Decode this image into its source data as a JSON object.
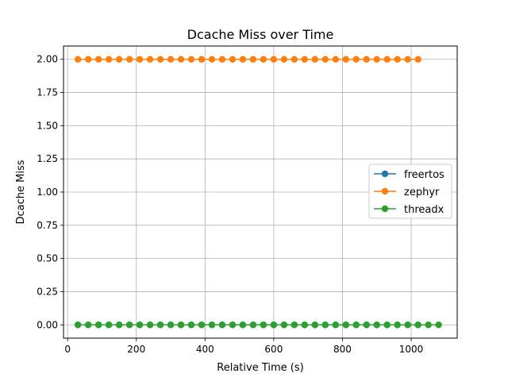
{
  "chart_data": {
    "type": "line",
    "title": "Dcache Miss over Time",
    "xlabel": "Relative Time (s)",
    "ylabel": "Dcache Miss",
    "xlim": [
      -12,
      1134
    ],
    "ylim": [
      -0.1,
      2.1
    ],
    "xticks": [
      0,
      200,
      400,
      600,
      800,
      1000
    ],
    "xtick_labels": [
      "0",
      "200",
      "400",
      "600",
      "800",
      "1000"
    ],
    "yticks": [
      0,
      0.25,
      0.5,
      0.75,
      1.0,
      1.25,
      1.5,
      1.75,
      2.0
    ],
    "ytick_labels": [
      "0.00",
      "0.25",
      "0.50",
      "0.75",
      "1.00",
      "1.25",
      "1.50",
      "1.75",
      "2.00"
    ],
    "grid": true,
    "legend_position": "center-right",
    "series": [
      {
        "name": "freertos",
        "color": "#1f77b4",
        "x": [
          30,
          60,
          90,
          120,
          150,
          180,
          210,
          240,
          270,
          300,
          330,
          360,
          390,
          420,
          450,
          480,
          510,
          540,
          570,
          600,
          630,
          660,
          690,
          720,
          750,
          780,
          810,
          840,
          870,
          900,
          930,
          960,
          990,
          1020
        ],
        "y": [
          0,
          0,
          0,
          0,
          0,
          0,
          0,
          0,
          0,
          0,
          0,
          0,
          0,
          0,
          0,
          0,
          0,
          0,
          0,
          0,
          0,
          0,
          0,
          0,
          0,
          0,
          0,
          0,
          0,
          0,
          0,
          0,
          0,
          0
        ]
      },
      {
        "name": "zephyr",
        "color": "#ff7f0e",
        "x": [
          30,
          60,
          90,
          120,
          150,
          180,
          210,
          240,
          270,
          300,
          330,
          360,
          390,
          420,
          450,
          480,
          510,
          540,
          570,
          600,
          630,
          660,
          690,
          720,
          750,
          780,
          810,
          840,
          870,
          900,
          930,
          960,
          990,
          1020
        ],
        "y": [
          2,
          2,
          2,
          2,
          2,
          2,
          2,
          2,
          2,
          2,
          2,
          2,
          2,
          2,
          2,
          2,
          2,
          2,
          2,
          2,
          2,
          2,
          2,
          2,
          2,
          2,
          2,
          2,
          2,
          2,
          2,
          2,
          2,
          2
        ]
      },
      {
        "name": "threadx",
        "color": "#2ca02c",
        "x": [
          30,
          60,
          90,
          120,
          150,
          180,
          210,
          240,
          270,
          300,
          330,
          360,
          390,
          420,
          450,
          480,
          510,
          540,
          570,
          600,
          630,
          660,
          690,
          720,
          750,
          780,
          810,
          840,
          870,
          900,
          930,
          960,
          990,
          1020,
          1050,
          1080
        ],
        "y": [
          0,
          0,
          0,
          0,
          0,
          0,
          0,
          0,
          0,
          0,
          0,
          0,
          0,
          0,
          0,
          0,
          0,
          0,
          0,
          0,
          0,
          0,
          0,
          0,
          0,
          0,
          0,
          0,
          0,
          0,
          0,
          0,
          0,
          0,
          0,
          0
        ]
      }
    ]
  }
}
